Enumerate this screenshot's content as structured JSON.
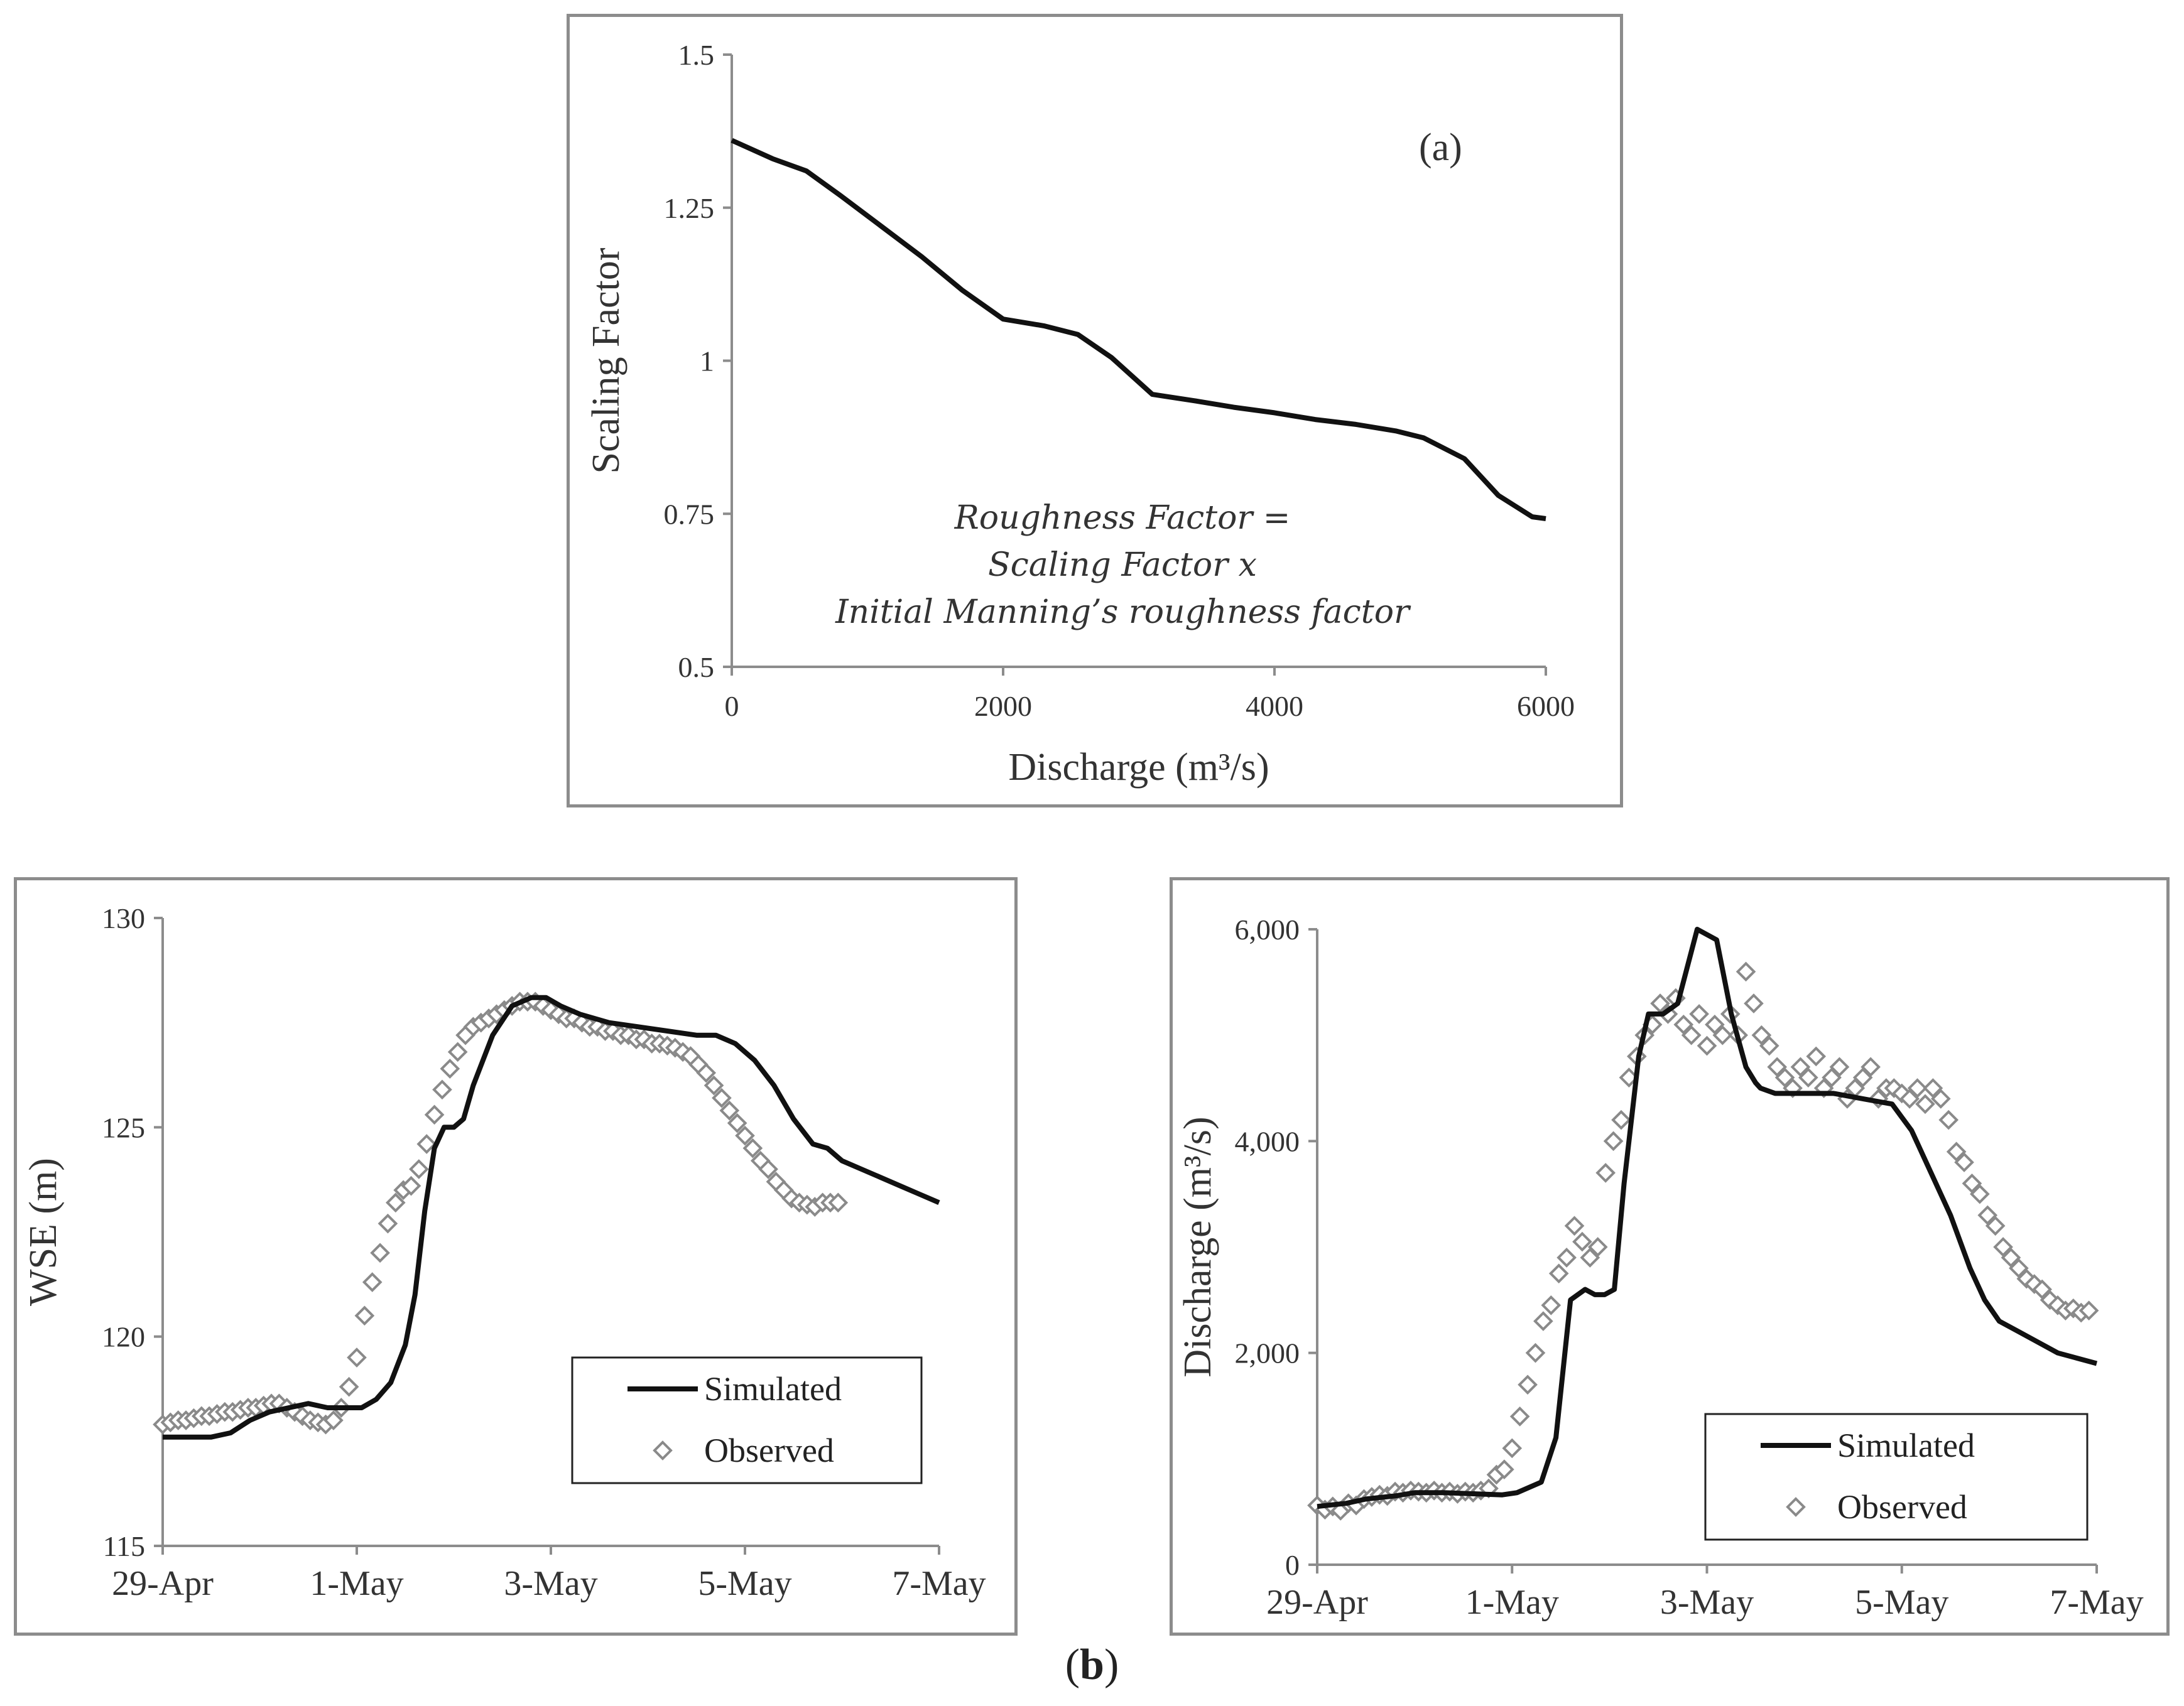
{
  "figure_label": {
    "open": "(",
    "letter": "b",
    "close": ")"
  },
  "chart_data": [
    {
      "id": "a",
      "type": "line",
      "panel_label": "(a)",
      "xlabel": "Discharge",
      "xlabel_unit": "(m³/s)",
      "ylabel": "Scaling Factor",
      "xlim": [
        0,
        6000
      ],
      "ylim": [
        0.5,
        1.5
      ],
      "xticks": [
        0,
        2000,
        4000,
        6000
      ],
      "xtick_labels": [
        "0",
        "2000",
        "4000",
        "6000"
      ],
      "yticks": [
        0.5,
        0.75,
        1,
        1.25,
        1.5
      ],
      "ytick_labels": [
        "0.5",
        "0.75",
        "1",
        "1.25",
        "1.5"
      ],
      "formula": [
        "Roughness Factor =",
        "Scaling Factor  x",
        "Initial Manning’s roughness factor"
      ],
      "series": [
        {
          "name": "Scaling Factor",
          "x": [
            0,
            300,
            550,
            800,
            1100,
            1400,
            1700,
            2000,
            2300,
            2550,
            2800,
            3100,
            3400,
            3700,
            4000,
            4300,
            4600,
            4900,
            5100,
            5400,
            5650,
            5900,
            6000
          ],
          "y": [
            1.36,
            1.33,
            1.31,
            1.27,
            1.22,
            1.17,
            1.115,
            1.068,
            1.057,
            1.043,
            1.005,
            0.945,
            0.935,
            0.924,
            0.915,
            0.904,
            0.896,
            0.885,
            0.874,
            0.84,
            0.78,
            0.745,
            0.742
          ]
        }
      ]
    },
    {
      "id": "b1",
      "type": "line",
      "ylabel": "WSE (m)",
      "xlabel": "",
      "xlim": [
        0,
        8
      ],
      "ylim": [
        115,
        130
      ],
      "xtick_values": [
        0,
        2,
        4,
        6,
        8
      ],
      "xtick_labels": [
        "29-Apr",
        "1-May",
        "3-May",
        "5-May",
        "7-May"
      ],
      "yticks": [
        115,
        120,
        125,
        130
      ],
      "ytick_labels": [
        "115",
        "120",
        "125",
        "130"
      ],
      "legend": {
        "simulated": "Simulated",
        "observed": "Observed",
        "position": "bottom-right"
      },
      "series": [
        {
          "name": "Simulated",
          "kind": "line",
          "x": [
            0,
            0.3,
            0.5,
            0.7,
            0.9,
            1.1,
            1.3,
            1.5,
            1.7,
            1.9,
            2.05,
            2.2,
            2.35,
            2.5,
            2.6,
            2.7,
            2.8,
            2.9,
            3.0,
            3.1,
            3.2,
            3.4,
            3.6,
            3.8,
            3.95,
            4.1,
            4.3,
            4.6,
            4.9,
            5.2,
            5.5,
            5.7,
            5.9,
            6.1,
            6.3,
            6.5,
            6.7,
            6.85,
            7.0,
            7.2,
            7.4,
            7.6,
            7.8,
            8.0
          ],
          "y": [
            117.6,
            117.6,
            117.6,
            117.7,
            118.0,
            118.2,
            118.3,
            118.4,
            118.3,
            118.3,
            118.3,
            118.5,
            118.9,
            119.8,
            121.0,
            123.0,
            124.5,
            125.0,
            125.0,
            125.2,
            126.0,
            127.2,
            127.9,
            128.1,
            128.1,
            127.9,
            127.7,
            127.5,
            127.4,
            127.3,
            127.2,
            127.2,
            127.0,
            126.6,
            126.0,
            125.2,
            124.6,
            124.5,
            124.2,
            124.0,
            123.8,
            123.6,
            123.4,
            123.2
          ]
        },
        {
          "name": "Observed",
          "kind": "scatter",
          "x": [
            0,
            0.08,
            0.16,
            0.24,
            0.32,
            0.4,
            0.48,
            0.56,
            0.64,
            0.72,
            0.8,
            0.88,
            0.96,
            1.04,
            1.12,
            1.2,
            1.28,
            1.36,
            1.44,
            1.52,
            1.6,
            1.68,
            1.76,
            1.84,
            1.92,
            2.0,
            2.08,
            2.16,
            2.24,
            2.32,
            2.4,
            2.48,
            2.56,
            2.64,
            2.72,
            2.8,
            2.88,
            2.96,
            3.04,
            3.12,
            3.2,
            3.28,
            3.36,
            3.44,
            3.52,
            3.6,
            3.68,
            3.76,
            3.84,
            3.92,
            4.0,
            4.08,
            4.16,
            4.24,
            4.32,
            4.4,
            4.48,
            4.56,
            4.64,
            4.72,
            4.8,
            4.88,
            4.96,
            5.04,
            5.12,
            5.2,
            5.28,
            5.36,
            5.44,
            5.52,
            5.6,
            5.68,
            5.76,
            5.84,
            5.92,
            6.0,
            6.08,
            6.16,
            6.24,
            6.32,
            6.4,
            6.48,
            6.56,
            6.64,
            6.72,
            6.8,
            6.88,
            6.96
          ],
          "y": [
            117.9,
            117.95,
            118.0,
            118.0,
            118.05,
            118.1,
            118.1,
            118.15,
            118.2,
            118.2,
            118.25,
            118.3,
            118.3,
            118.35,
            118.4,
            118.4,
            118.3,
            118.2,
            118.1,
            118.0,
            117.95,
            117.9,
            118.0,
            118.3,
            118.8,
            119.5,
            120.5,
            121.3,
            122.0,
            122.7,
            123.2,
            123.5,
            123.6,
            124.0,
            124.6,
            125.3,
            125.9,
            126.4,
            126.8,
            127.2,
            127.4,
            127.5,
            127.6,
            127.7,
            127.8,
            127.9,
            128.0,
            128.0,
            128.0,
            127.9,
            127.8,
            127.7,
            127.6,
            127.6,
            127.5,
            127.4,
            127.4,
            127.3,
            127.3,
            127.2,
            127.2,
            127.1,
            127.1,
            127.0,
            127.0,
            126.95,
            126.9,
            126.8,
            126.7,
            126.5,
            126.3,
            126.0,
            125.7,
            125.4,
            125.1,
            124.8,
            124.5,
            124.2,
            124.0,
            123.7,
            123.5,
            123.3,
            123.2,
            123.15,
            123.1,
            123.2,
            123.2,
            123.2
          ]
        }
      ]
    },
    {
      "id": "b2",
      "type": "line",
      "ylabel": "Discharge",
      "ylabel_unit": "(m³/s)",
      "xlabel": "",
      "xlim": [
        0,
        8
      ],
      "ylim": [
        0,
        6000
      ],
      "xtick_values": [
        0,
        2,
        4,
        6,
        8
      ],
      "xtick_labels": [
        "29-Apr",
        "1-May",
        "3-May",
        "5-May",
        "7-May"
      ],
      "yticks": [
        0,
        2000,
        4000,
        6000
      ],
      "ytick_labels": [
        "0",
        "2,000",
        "4,000",
        "6,000"
      ],
      "legend": {
        "simulated": "Simulated",
        "observed": "Observed",
        "position": "bottom-right"
      },
      "series": [
        {
          "name": "Simulated",
          "kind": "line",
          "x": [
            0,
            0.3,
            0.5,
            0.8,
            1.0,
            1.3,
            1.6,
            1.9,
            2.05,
            2.3,
            2.45,
            2.6,
            2.75,
            2.85,
            2.95,
            3.05,
            3.15,
            3.3,
            3.4,
            3.55,
            3.7,
            3.9,
            4.1,
            4.25,
            4.4,
            4.5,
            4.55,
            4.7,
            4.85,
            5.0,
            5.3,
            5.6,
            5.9,
            6.1,
            6.3,
            6.5,
            6.7,
            6.85,
            7.0,
            7.2,
            7.4,
            7.6,
            7.8,
            8.0
          ],
          "y": [
            550,
            580,
            620,
            650,
            680,
            680,
            670,
            660,
            680,
            780,
            1200,
            2500,
            2600,
            2550,
            2550,
            2600,
            3600,
            4800,
            5200,
            5200,
            5300,
            6000,
            5900,
            5200,
            4700,
            4550,
            4500,
            4450,
            4450,
            4450,
            4450,
            4400,
            4350,
            4100,
            3700,
            3300,
            2800,
            2500,
            2300,
            2200,
            2100,
            2000,
            1950,
            1900
          ]
        },
        {
          "name": "Observed",
          "kind": "scatter",
          "x": [
            0,
            0.08,
            0.16,
            0.24,
            0.32,
            0.4,
            0.48,
            0.56,
            0.64,
            0.72,
            0.8,
            0.88,
            0.96,
            1.04,
            1.12,
            1.2,
            1.28,
            1.36,
            1.44,
            1.52,
            1.6,
            1.68,
            1.76,
            1.84,
            1.92,
            2.0,
            2.08,
            2.16,
            2.24,
            2.32,
            2.4,
            2.48,
            2.56,
            2.64,
            2.72,
            2.8,
            2.88,
            2.96,
            3.04,
            3.12,
            3.2,
            3.28,
            3.36,
            3.44,
            3.52,
            3.6,
            3.68,
            3.76,
            3.84,
            3.92,
            4.0,
            4.08,
            4.16,
            4.24,
            4.32,
            4.4,
            4.48,
            4.56,
            4.64,
            4.72,
            4.8,
            4.88,
            4.96,
            5.04,
            5.12,
            5.2,
            5.28,
            5.36,
            5.44,
            5.52,
            5.6,
            5.68,
            5.76,
            5.84,
            5.92,
            6.0,
            6.08,
            6.16,
            6.24,
            6.32,
            6.4,
            6.48,
            6.56,
            6.64,
            6.72,
            6.8,
            6.88,
            6.96,
            7.04,
            7.12,
            7.2,
            7.28,
            7.36,
            7.44,
            7.52,
            7.6,
            7.68,
            7.76,
            7.84,
            7.92
          ],
          "y": [
            560,
            520,
            550,
            510,
            580,
            560,
            620,
            640,
            660,
            650,
            690,
            680,
            700,
            690,
            680,
            700,
            680,
            690,
            670,
            690,
            680,
            700,
            720,
            850,
            900,
            1100,
            1400,
            1700,
            2000,
            2300,
            2450,
            2750,
            2900,
            3200,
            3050,
            2900,
            3000,
            3700,
            4000,
            4200,
            4600,
            4800,
            5000,
            5100,
            5300,
            5200,
            5350,
            5100,
            5000,
            5200,
            4900,
            5100,
            5000,
            5200,
            5000,
            5600,
            5300,
            5000,
            4900,
            4700,
            4600,
            4500,
            4700,
            4600,
            4800,
            4500,
            4600,
            4700,
            4400,
            4500,
            4600,
            4700,
            4400,
            4500,
            4500,
            4450,
            4400,
            4500,
            4350,
            4500,
            4400,
            4200,
            3900,
            3800,
            3600,
            3500,
            3300,
            3200,
            3000,
            2900,
            2800,
            2700,
            2650,
            2600,
            2500,
            2450,
            2400,
            2420,
            2380,
            2400
          ]
        }
      ]
    }
  ]
}
